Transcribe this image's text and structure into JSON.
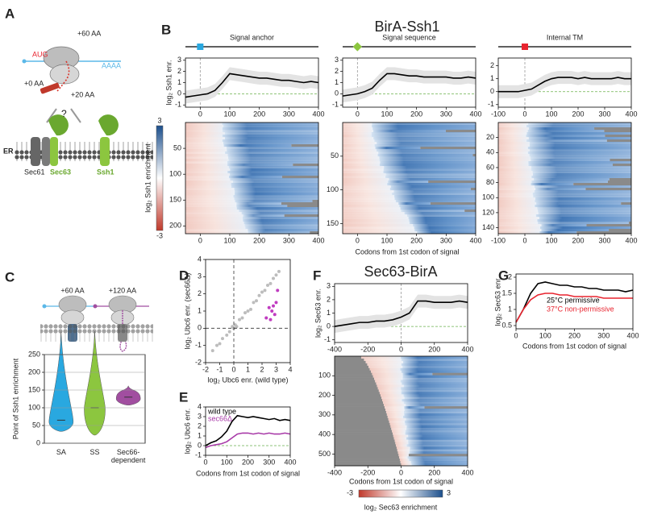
{
  "panel_labels": [
    "A",
    "B",
    "C",
    "D",
    "E",
    "F",
    "G"
  ],
  "panel_a": {
    "aug": "AUG",
    "plus60": "+60 AA",
    "polya": "AAAA",
    "plus0": "+0 AA",
    "plus20": "+20 AA",
    "question": "?",
    "er": "ER",
    "sec61": "Sec61",
    "sec63": "Sec63",
    "ssh1": "Ssh1"
  },
  "panel_b": {
    "title": "BirA-Ssh1",
    "xlabel": "Codons from 1st codon of signal",
    "colorbar_label": "log₂ Ssh1 enrichment",
    "colorbar_ticks": [
      3,
      -3
    ]
  },
  "panel_c": {
    "diagram_labels": [
      "+60 AA",
      "+120 AA"
    ]
  },
  "panel_f": {
    "title": "Sec63-BirA",
    "colorbar_label": "log₂ Sec63 enrichment",
    "colorbar_ticks": [
      -3,
      3
    ]
  },
  "chart_data": [
    {
      "type": "line",
      "title": "Signal anchor",
      "marker_color": "#29a8e0",
      "ylabel": "log₂ Ssh1 enr.",
      "x": [
        -50,
        -25,
        0,
        25,
        50,
        75,
        100,
        125,
        150,
        175,
        200,
        225,
        250,
        275,
        300,
        325,
        350,
        375,
        400
      ],
      "series": [
        {
          "color": "#000000",
          "values": [
            -0.3,
            -0.2,
            -0.1,
            0,
            0.3,
            1.0,
            1.8,
            1.7,
            1.6,
            1.5,
            1.4,
            1.4,
            1.3,
            1.2,
            1.2,
            1.1,
            1.0,
            1.1,
            1.0
          ]
        }
      ],
      "xlim": [
        -50,
        400
      ],
      "xticks": [
        0,
        100,
        200,
        300,
        400
      ],
      "ylim": [
        -1.2,
        3.2
      ],
      "yticks": [
        -1,
        0,
        1,
        2,
        3
      ]
    },
    {
      "type": "line",
      "title": "Signal sequence",
      "marker_color": "#8cc63f",
      "x": [
        -50,
        -25,
        0,
        25,
        50,
        75,
        100,
        125,
        150,
        175,
        200,
        225,
        250,
        275,
        300,
        325,
        350,
        375,
        400
      ],
      "series": [
        {
          "color": "#000000",
          "values": [
            -0.2,
            -0.1,
            0,
            0.2,
            0.5,
            1.2,
            1.8,
            1.8,
            1.7,
            1.6,
            1.6,
            1.5,
            1.5,
            1.5,
            1.5,
            1.4,
            1.4,
            1.5,
            1.4
          ]
        }
      ],
      "xlim": [
        -50,
        400
      ],
      "xticks": [
        0,
        100,
        200,
        300,
        400
      ],
      "ylim": [
        -1.2,
        3.2
      ],
      "yticks": [
        -1,
        0,
        1,
        2,
        3
      ]
    },
    {
      "type": "line",
      "title": "Internal TM",
      "marker_color": "#e8242f",
      "x": [
        -100,
        -75,
        -50,
        -25,
        0,
        25,
        50,
        75,
        100,
        125,
        150,
        175,
        200,
        225,
        250,
        275,
        300,
        325,
        350,
        375,
        400
      ],
      "series": [
        {
          "color": "#000000",
          "values": [
            0,
            0,
            0,
            0,
            0.1,
            0.2,
            0.5,
            0.8,
            1.0,
            1.1,
            1.1,
            1.1,
            1.0,
            1.1,
            1.0,
            1.0,
            1.0,
            1.0,
            1.1,
            1.0,
            1.0
          ]
        }
      ],
      "xlim": [
        -100,
        400
      ],
      "xticks": [
        -100,
        0,
        100,
        200,
        300,
        400
      ],
      "ylim": [
        -1.2,
        2.6
      ],
      "yticks": [
        -1,
        0,
        1,
        2
      ]
    },
    {
      "type": "heatmap",
      "xlim": [
        -50,
        400
      ],
      "xticks": [
        0,
        100,
        200,
        300,
        400
      ],
      "ylim": [
        0,
        215
      ],
      "yticks": [
        50,
        100,
        150,
        200
      ],
      "y_inverted": true
    },
    {
      "type": "heatmap",
      "xlim": [
        -50,
        400
      ],
      "xticks": [
        0,
        100,
        200,
        300,
        400
      ],
      "ylim": [
        0,
        165
      ],
      "yticks": [
        50,
        100,
        150
      ],
      "y_inverted": true
    },
    {
      "type": "heatmap",
      "xlim": [
        -100,
        400
      ],
      "xticks": [
        -100,
        0,
        100,
        200,
        300,
        400
      ],
      "ylim": [
        0,
        148
      ],
      "yticks": [
        20,
        40,
        60,
        80,
        100,
        120,
        140
      ],
      "y_inverted": true
    },
    {
      "type": "violin",
      "ylabel": "Point of Ssh1 enrichment",
      "categories": [
        "SA",
        "SS",
        "Sec66-dependent"
      ],
      "values": [
        65,
        100,
        130
      ],
      "colors": [
        "#29a8e0",
        "#8cc63f",
        "#a14ea0"
      ],
      "ylim": [
        0,
        250
      ],
      "yticks": [
        0,
        50,
        100,
        150,
        200,
        250
      ],
      "grid": true
    },
    {
      "type": "scatter",
      "xlabel": "log₂ Ubc6 enr. (wild type)",
      "ylabel": "log₂ Ubc6 enr. (sec66Δ)",
      "series": [
        {
          "color": "#bdbdbd",
          "x": [
            -1.5,
            -1.2,
            -1,
            -0.8,
            -0.5,
            -0.3,
            -0.1,
            0,
            0.1,
            0.2,
            0.4,
            0.6,
            0.8,
            1,
            1.2,
            1.4,
            1.6,
            1.8,
            2,
            2.2,
            2.4,
            2.6,
            2.8,
            3,
            3.2
          ],
          "values": [
            -1.3,
            -1,
            -0.9,
            -0.6,
            -0.4,
            -0.2,
            0.1,
            0,
            0.2,
            0.1,
            0.5,
            0.6,
            0.9,
            1,
            1.1,
            1.5,
            1.6,
            1.9,
            2.1,
            2.2,
            2.5,
            2.6,
            2.9,
            3.1,
            3.3
          ]
        },
        {
          "color": "#c03cc0",
          "x": [
            2.3,
            2.5,
            2.6,
            2.8,
            2.9,
            3,
            3.1,
            2.7
          ],
          "values": [
            0.6,
            1.2,
            0.5,
            1.3,
            0.8,
            1.5,
            2.2,
            1
          ]
        }
      ],
      "xlim": [
        -2,
        4
      ],
      "xticks": [
        -2,
        -1,
        0,
        1,
        2,
        3,
        4
      ],
      "ylim": [
        -2,
        4
      ],
      "yticks": [
        -2,
        -1,
        0,
        1,
        2,
        3,
        4
      ]
    },
    {
      "type": "line",
      "xlabel": "Codons from 1st codon of signal",
      "ylabel": "log₂ Ubc6 enr.",
      "x": [
        0,
        25,
        50,
        75,
        100,
        125,
        150,
        175,
        200,
        225,
        250,
        275,
        300,
        325,
        350,
        375,
        400
      ],
      "series": [
        {
          "name": "wild type",
          "color": "#000000",
          "values": [
            0,
            0.3,
            0.5,
            0.9,
            1.5,
            2.5,
            3.1,
            3.0,
            2.9,
            3.0,
            2.9,
            2.8,
            2.7,
            2.8,
            2.6,
            2.7,
            2.6
          ]
        },
        {
          "name": "sec66Δ",
          "color": "#a83aa8",
          "values": [
            -0.2,
            0,
            0.1,
            0.2,
            0.4,
            0.8,
            1.2,
            1.3,
            1.3,
            1.2,
            1.3,
            1.2,
            1.3,
            1.2,
            1.2,
            1.3,
            1.2
          ]
        }
      ],
      "xlim": [
        0,
        400
      ],
      "xticks": [
        0,
        100,
        200,
        300,
        400
      ],
      "ylim": [
        -1,
        4
      ],
      "yticks": [
        -1,
        0,
        1,
        2,
        3,
        4
      ]
    },
    {
      "type": "line",
      "ylabel": "log₂ Sec63 enr.",
      "x": [
        -400,
        -350,
        -300,
        -250,
        -200,
        -150,
        -100,
        -50,
        0,
        50,
        100,
        150,
        200,
        250,
        300,
        350,
        400
      ],
      "series": [
        {
          "color": "#000000",
          "values": [
            0,
            0.1,
            0.2,
            0.3,
            0.3,
            0.4,
            0.4,
            0.5,
            0.7,
            1.0,
            1.9,
            1.9,
            1.8,
            1.8,
            1.8,
            1.9,
            1.8
          ]
        }
      ],
      "xlim": [
        -400,
        400
      ],
      "xticks": [
        -400,
        -200,
        0,
        200,
        400
      ],
      "ylim": [
        -1.2,
        3.2
      ],
      "yticks": [
        -1,
        0,
        1,
        2,
        3
      ]
    },
    {
      "type": "heatmap",
      "xlabel": "Codons from 1st codon of signal",
      "xlim": [
        -400,
        400
      ],
      "xticks": [
        -400,
        -200,
        0,
        200,
        400
      ],
      "ylim": [
        0,
        560
      ],
      "yticks": [
        100,
        200,
        300,
        400,
        500
      ],
      "y_inverted": true
    },
    {
      "type": "line",
      "xlabel": "Codons from 1st codon of signal",
      "ylabel": "log₂ Sec63 enr.",
      "x": [
        0,
        25,
        50,
        75,
        100,
        125,
        150,
        175,
        200,
        225,
        250,
        275,
        300,
        325,
        350,
        375,
        400
      ],
      "series": [
        {
          "name": "25°C permissive",
          "color": "#000000",
          "values": [
            0.6,
            1.0,
            1.5,
            1.8,
            1.85,
            1.8,
            1.75,
            1.75,
            1.7,
            1.7,
            1.65,
            1.65,
            1.6,
            1.6,
            1.6,
            1.55,
            1.6
          ]
        },
        {
          "name": "37°C non-permissive",
          "color": "#e8242f",
          "values": [
            0.6,
            1.0,
            1.3,
            1.45,
            1.5,
            1.5,
            1.45,
            1.45,
            1.4,
            1.4,
            1.4,
            1.4,
            1.35,
            1.35,
            1.35,
            1.35,
            1.35
          ]
        }
      ],
      "xlim": [
        0,
        400
      ],
      "xticks": [
        0,
        100,
        200,
        300,
        400
      ],
      "ylim": [
        0.4,
        2.1
      ],
      "yticks": [
        0.5,
        1,
        1.5,
        2
      ]
    }
  ]
}
